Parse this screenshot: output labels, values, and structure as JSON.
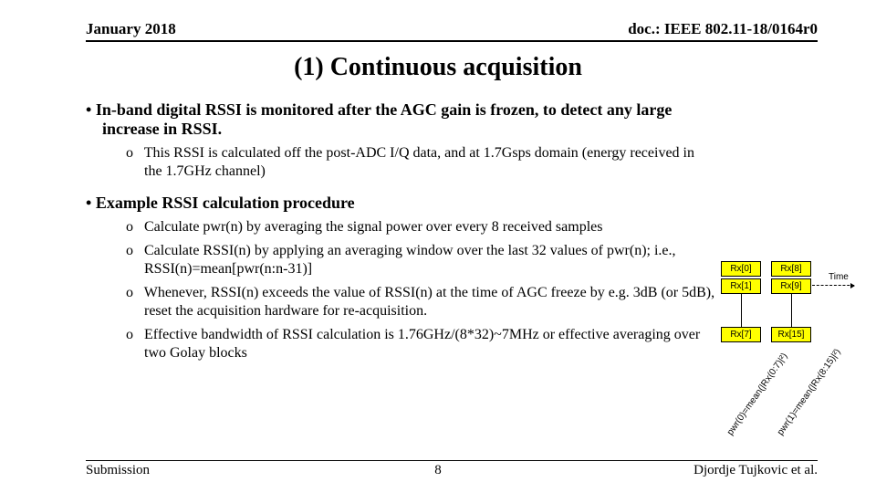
{
  "header": {
    "date": "January 2018",
    "doc": "doc.: IEEE 802.11-18/0164r0"
  },
  "title": "(1) Continuous acquisition",
  "s1": {
    "main": "In-band digital RSSI is monitored after the AGC gain is frozen, to detect any large increase in RSSI.",
    "sub1": "This RSSI is calculated off the post-ADC I/Q data, and at 1.7Gsps domain (energy received in the 1.7GHz channel)"
  },
  "s2": {
    "main": "Example RSSI calculation procedure",
    "sub1": "Calculate pwr(n) by averaging the signal power over every 8 received samples",
    "sub2": "Calculate RSSI(n) by applying an averaging window over the last 32 values of pwr(n); i.e., RSSI(n)=mean[pwr(n:n-31)]",
    "sub3": "Whenever, RSSI(n) exceeds the value of RSSI(n) at the time of AGC freeze by e.g. 3dB (or 5dB), reset the acquisition hardware for re-acquisition.",
    "sub4": "Effective bandwidth of RSSI calculation is 1.76GHz/(8*32)~7MHz or effective averaging over two Golay blocks"
  },
  "diagram": {
    "cells": {
      "a0": "Rx[0]",
      "b0": "Rx[8]",
      "a1": "Rx[1]",
      "b1": "Rx[9]",
      "a2": "Rx[7]",
      "b2": "Rx[15]"
    },
    "time": "Time",
    "rotA": "pwr(0)=mean(|Rx(0:7)|²)",
    "rotB": "pwr(1)=mean(|Rx(8:15)|²)",
    "colors": {
      "yellow": "#ffff00",
      "white": "#ffffff",
      "border": "#000000"
    }
  },
  "footer": {
    "left": "Submission",
    "page": "8",
    "right": "Djordje Tujkovic et al."
  }
}
